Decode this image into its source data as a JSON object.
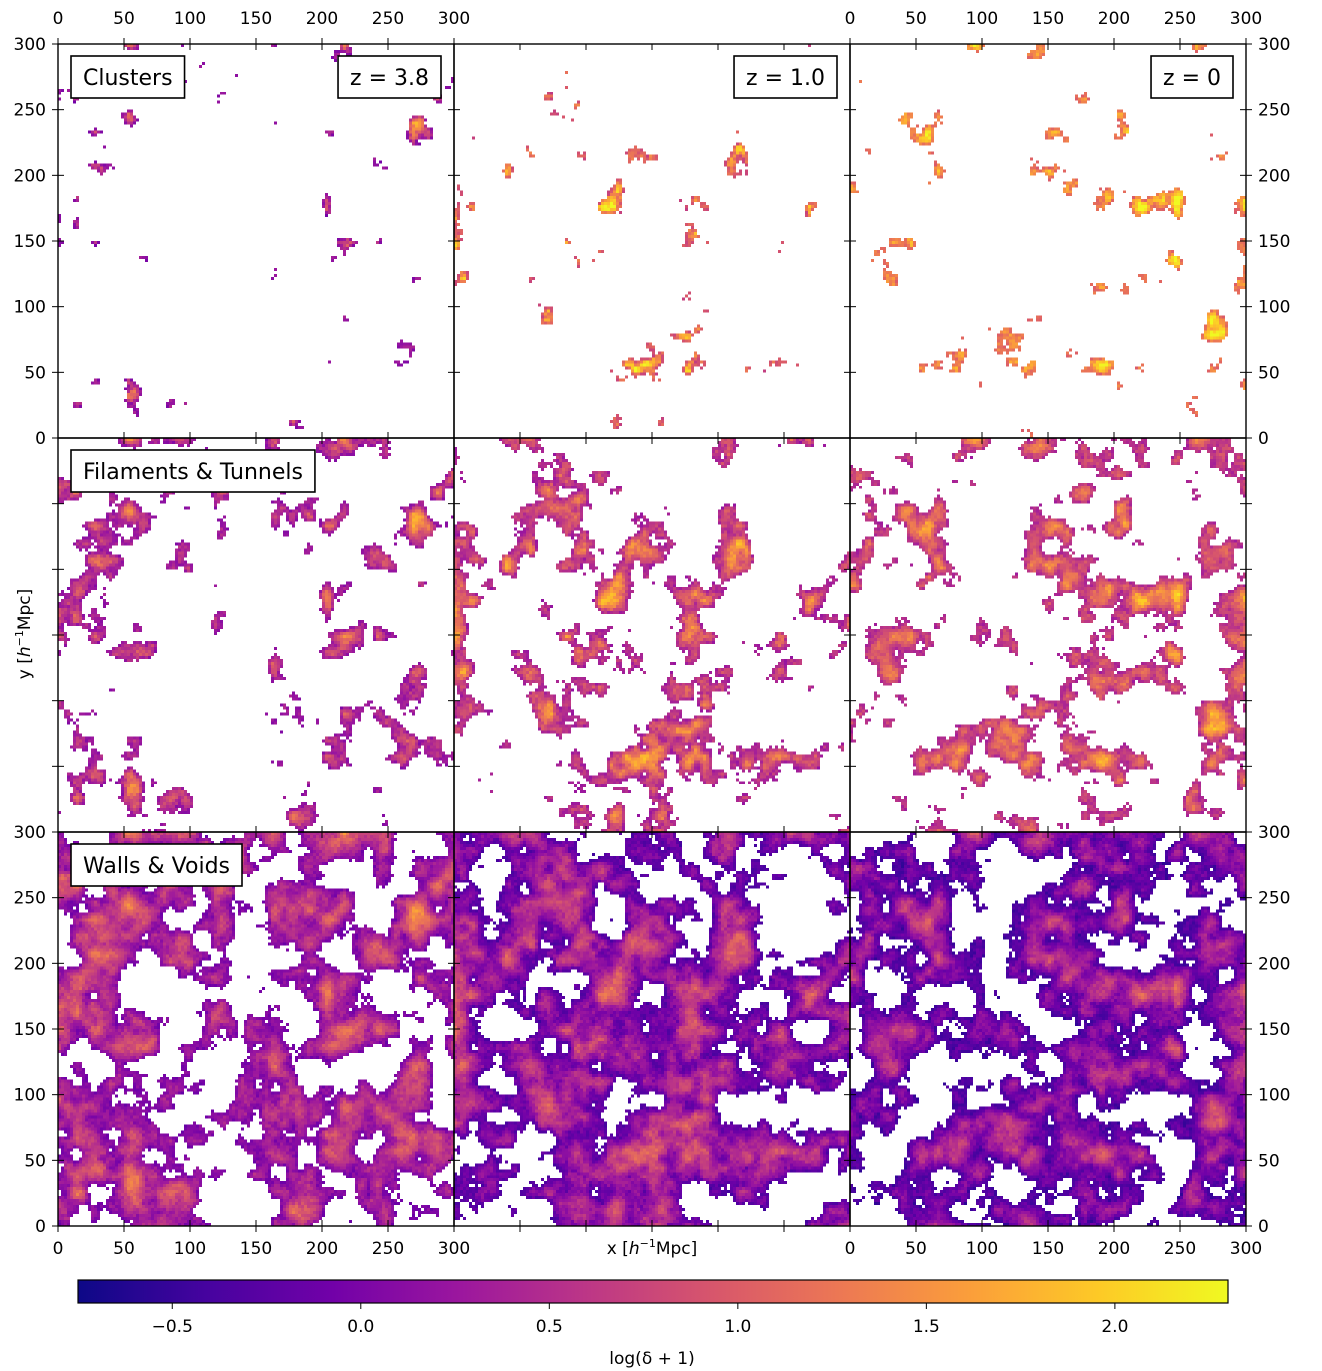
{
  "chart_data": {
    "type": "heatmap",
    "layout": {
      "rows": 3,
      "cols": 3,
      "shared_axes": true
    },
    "redshift_labels": [
      "z = 3.8",
      "z = 1.0",
      "z = 0"
    ],
    "row_labels": [
      "Clusters",
      "Filaments & Tunnels",
      "Walls & Voids"
    ],
    "xlabel_prefix": "x [",
    "xlabel_unit": "h",
    "xlabel_sup": "−1",
    "xlabel_suffix": "Mpc]",
    "ylabel_prefix": "y [",
    "ylabel_unit": "h",
    "ylabel_sup": "−1",
    "ylabel_suffix": "Mpc]",
    "xlim": [
      0,
      300
    ],
    "ylim": [
      0,
      300
    ],
    "x_ticks": [
      "0",
      "50",
      "100",
      "150",
      "200",
      "250",
      "300"
    ],
    "y_ticks": [
      "0",
      "50",
      "100",
      "150",
      "200",
      "250",
      "300"
    ],
    "colorbar": {
      "label": "log(δ + 1)",
      "range": [
        -0.75,
        2.3
      ],
      "ticks": [
        "−0.5",
        "0.0",
        "0.5",
        "1.0",
        "1.5",
        "2.0"
      ],
      "tick_values": [
        -0.5,
        0.0,
        0.5,
        1.0,
        1.5,
        2.0
      ],
      "colormap": "plasma"
    },
    "panel_fill": [
      [
        0.02,
        0.03,
        0.05
      ],
      [
        0.16,
        0.24,
        0.28
      ],
      [
        0.62,
        0.7,
        0.68
      ]
    ],
    "panel_mean_log_density": [
      [
        0.05,
        0.75,
        1.05
      ],
      [
        0.15,
        0.3,
        0.4
      ],
      [
        -0.05,
        -0.35,
        -0.45
      ]
    ]
  },
  "colors": {
    "plasma": [
      "#0d0887",
      "#46039f",
      "#7201a8",
      "#9c179e",
      "#bd3786",
      "#d8576b",
      "#ed7953",
      "#fb9f3a",
      "#fdca26",
      "#f0f921"
    ],
    "frame": "#000000",
    "background": "#ffffff"
  }
}
